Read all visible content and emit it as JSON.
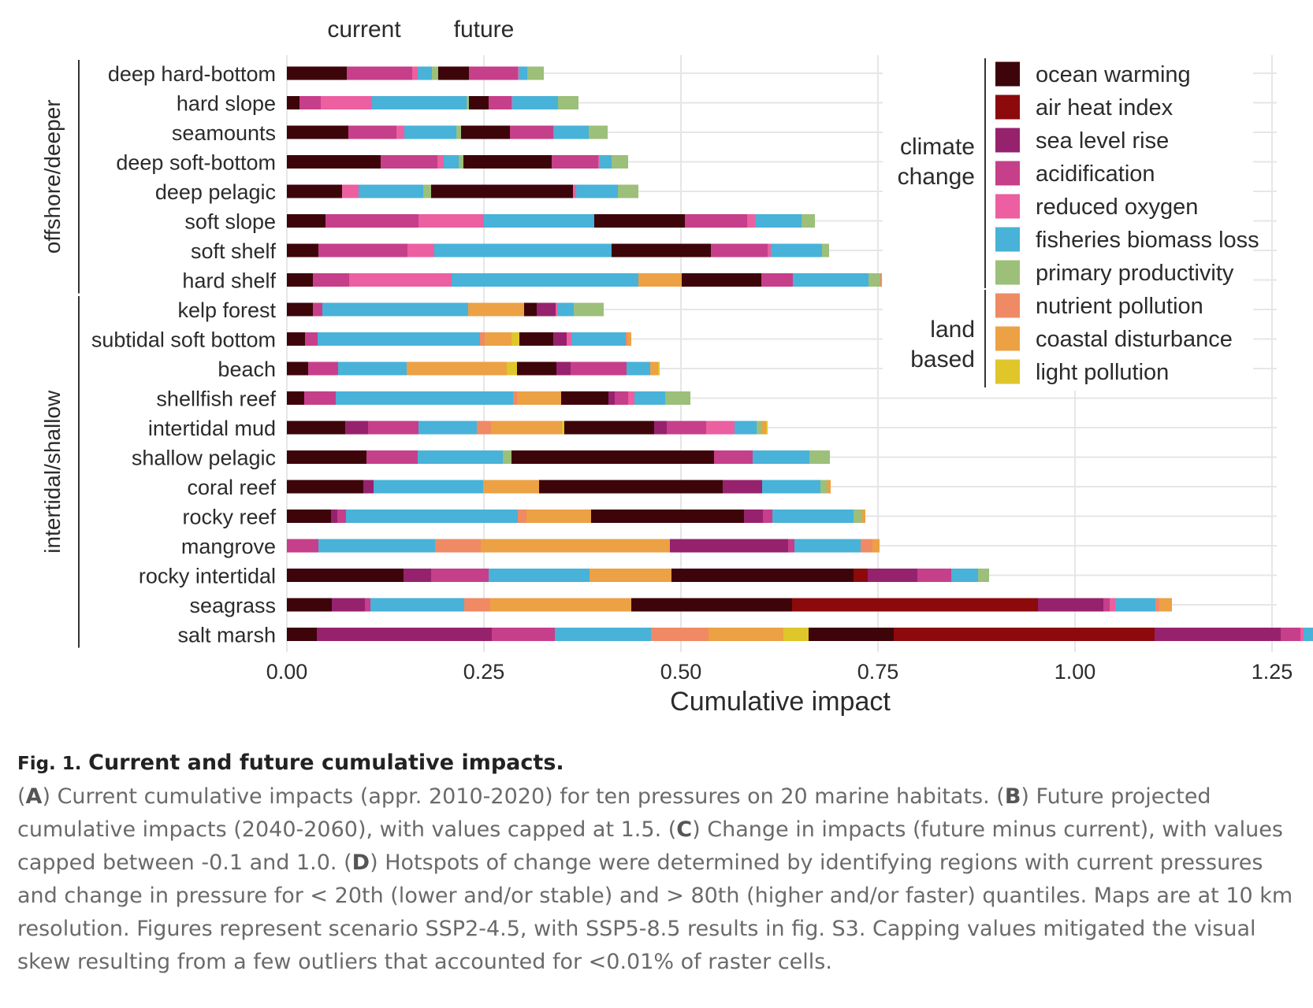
{
  "chart_data": {
    "type": "bar",
    "orientation": "horizontal",
    "stacked": true,
    "title": "",
    "column_labels": [
      "current",
      "future"
    ],
    "xlabel": "Cumulative impact",
    "ylabel": "",
    "xlim": [
      0,
      1.32
    ],
    "xticks": [
      0.0,
      0.25,
      0.5,
      0.75,
      1.0,
      1.25
    ],
    "xtick_labels": [
      "0.00",
      "0.25",
      "0.50",
      "0.75",
      "1.00",
      "1.25"
    ],
    "groups": [
      {
        "label": "offshore/deeper",
        "categories": [
          "deep hard-bottom",
          "hard slope",
          "seamounts",
          "deep soft-bottom",
          "deep pelagic",
          "soft slope",
          "soft shelf",
          "hard shelf"
        ]
      },
      {
        "label": "intertidal/shallow",
        "categories": [
          "kelp forest",
          "subtidal soft bottom",
          "beach",
          "shellfish reef",
          "intertidal mud",
          "shallow pelagic",
          "coral reef",
          "rocky reef",
          "mangrove",
          "rocky intertidal",
          "seagrass",
          "salt marsh"
        ]
      }
    ],
    "pressures": [
      {
        "name": "ocean warming",
        "color": "#3d0509",
        "group": "climate change"
      },
      {
        "name": "air heat index",
        "color": "#8c0a0b",
        "group": "climate change"
      },
      {
        "name": "sea level rise",
        "color": "#96226e",
        "group": "climate change"
      },
      {
        "name": "acidification",
        "color": "#c63f8a",
        "group": "climate change"
      },
      {
        "name": "reduced oxygen",
        "color": "#ec5fa0",
        "group": "climate change"
      },
      {
        "name": "fisheries biomass loss",
        "color": "#48b2d8",
        "group": "climate change"
      },
      {
        "name": "primary productivity",
        "color": "#9cbf7a",
        "group": "climate change"
      },
      {
        "name": "nutrient pollution",
        "color": "#ef8a64",
        "group": "land based"
      },
      {
        "name": "coastal disturbance",
        "color": "#eca144",
        "group": "land based"
      },
      {
        "name": "light pollution",
        "color": "#dfc62a",
        "group": "land based"
      }
    ],
    "legend_groups": [
      {
        "label_lines": [
          "climate",
          "change"
        ]
      },
      {
        "label_lines": [
          "land",
          "based"
        ]
      }
    ],
    "series_note": "Each habitat row shows two stacked bars: current, then future immediately to its right. Segment order follows the pressures list.",
    "rows": [
      {
        "habitat": "deep hard-bottom",
        "current": [
          0.076,
          0,
          0,
          0.083,
          0.007,
          0.018,
          0.008,
          0,
          0,
          0
        ],
        "future": [
          0.039,
          0,
          0,
          0.062,
          0.001,
          0.011,
          0.021,
          0,
          0,
          0
        ]
      },
      {
        "habitat": "hard slope",
        "current": [
          0.016,
          0,
          0,
          0.027,
          0.065,
          0.12,
          0.003,
          0,
          0,
          0
        ],
        "future": [
          0.025,
          0,
          0,
          0.029,
          0.001,
          0.058,
          0.026,
          0,
          0,
          0
        ]
      },
      {
        "habitat": "seamounts",
        "current": [
          0.078,
          0,
          0,
          0.061,
          0.01,
          0.066,
          0.006,
          0,
          0,
          0
        ],
        "future": [
          0.062,
          0,
          0,
          0.055,
          0.001,
          0.044,
          0.024,
          0,
          0,
          0
        ]
      },
      {
        "habitat": "deep soft-bottom",
        "current": [
          0.119,
          0,
          0,
          0.072,
          0.008,
          0.019,
          0.006,
          0,
          0,
          0
        ],
        "future": [
          0.112,
          0,
          0,
          0.059,
          0.001,
          0.016,
          0.021,
          0,
          0,
          0
        ]
      },
      {
        "habitat": "deep pelagic",
        "current": [
          0.07,
          0,
          0,
          0,
          0.021,
          0.082,
          0.01,
          0,
          0,
          0
        ],
        "future": [
          0.18,
          0,
          0,
          0,
          0.004,
          0.053,
          0.026,
          0,
          0,
          0
        ]
      },
      {
        "habitat": "soft slope",
        "current": [
          0.049,
          0,
          0,
          0.118,
          0.083,
          0.14,
          0,
          0,
          0,
          0
        ],
        "future": [
          0.115,
          0,
          0,
          0.079,
          0.01,
          0.059,
          0.017,
          0,
          0,
          0
        ]
      },
      {
        "habitat": "soft shelf",
        "current": [
          0.04,
          0,
          0,
          0.113,
          0.034,
          0.225,
          0,
          0,
          0,
          0
        ],
        "future": [
          0.126,
          0,
          0,
          0.072,
          0.004,
          0.065,
          0.009,
          0,
          0,
          0
        ]
      },
      {
        "habitat": "hard shelf",
        "current": [
          0.033,
          0,
          0,
          0.046,
          0.13,
          0.237,
          0,
          0,
          0.055,
          0
        ],
        "future": [
          0.101,
          0,
          0,
          0.04,
          0,
          0.096,
          0.015,
          0.002,
          0,
          0
        ]
      },
      {
        "habitat": "kelp forest",
        "current": [
          0.033,
          0,
          0,
          0.012,
          0,
          0.185,
          0,
          0,
          0.071,
          0
        ],
        "future": [
          0.016,
          0,
          0.024,
          0,
          0.002,
          0.021,
          0.038,
          0,
          0,
          0
        ]
      },
      {
        "habitat": "subtidal soft bottom",
        "current": [
          0.023,
          0,
          0,
          0.016,
          0,
          0.206,
          0,
          0.006,
          0.034,
          0.01
        ],
        "future": [
          0.043,
          0,
          0.017,
          0,
          0.006,
          0.069,
          0,
          0.002,
          0.005,
          0
        ]
      },
      {
        "habitat": "beach",
        "current": [
          0.027,
          0,
          0,
          0.038,
          0,
          0.087,
          0,
          0,
          0.127,
          0.013
        ],
        "future": [
          0.05,
          0,
          0.018,
          0.071,
          0,
          0.03,
          0,
          0,
          0.01,
          0.002
        ]
      },
      {
        "habitat": "shellfish reef",
        "current": [
          0.022,
          0,
          0,
          0.04,
          0,
          0.225,
          0,
          0.005,
          0.056,
          0
        ],
        "future": [
          0.06,
          0,
          0.008,
          0.017,
          0.008,
          0.039,
          0.032,
          0,
          0,
          0
        ]
      },
      {
        "habitat": "intertidal mud",
        "current": [
          0.074,
          0,
          0.029,
          0.064,
          0,
          0.074,
          0,
          0.018,
          0.09,
          0.003
        ],
        "future": [
          0.114,
          0,
          0.016,
          0.05,
          0.036,
          0.028,
          0.007,
          0,
          0.005,
          0.002
        ]
      },
      {
        "habitat": "shallow pelagic",
        "current": [
          0.101,
          0,
          0,
          0.065,
          0,
          0.108,
          0.011,
          0,
          0,
          0
        ],
        "future": [
          0.257,
          0,
          0,
          0.049,
          0,
          0.072,
          0.026,
          0,
          0,
          0
        ]
      },
      {
        "habitat": "coral reef",
        "current": [
          0.097,
          0,
          0.013,
          0,
          0,
          0.139,
          0,
          0,
          0.071,
          0
        ],
        "future": [
          0.233,
          0,
          0.05,
          0,
          0,
          0.074,
          0.008,
          0,
          0.005,
          0
        ]
      },
      {
        "habitat": "rocky reef",
        "current": [
          0.056,
          0,
          0.008,
          0.011,
          0,
          0.218,
          0,
          0.011,
          0.082,
          0
        ],
        "future": [
          0.194,
          0,
          0.024,
          0.012,
          0,
          0.103,
          0.011,
          0,
          0.004,
          0
        ]
      },
      {
        "habitat": "mangrove",
        "current": [
          0,
          0,
          0,
          0.04,
          0,
          0.148,
          0,
          0.058,
          0.24,
          0
        ],
        "future": [
          0,
          0,
          0.15,
          0.008,
          0,
          0.084,
          0,
          0.015,
          0.009,
          0
        ]
      },
      {
        "habitat": "rocky intertidal",
        "current": [
          0.148,
          0,
          0.035,
          0.073,
          0,
          0.128,
          0,
          0,
          0.104,
          0
        ],
        "future": [
          0.231,
          0.018,
          0.063,
          0.043,
          0,
          0.034,
          0.014,
          0,
          0,
          0
        ]
      },
      {
        "habitat": "seagrass",
        "current": [
          0.057,
          0,
          0.042,
          0.007,
          0,
          0.119,
          0,
          0.033,
          0.179,
          0
        ],
        "future": [
          0.204,
          0.312,
          0.083,
          0.008,
          0.007,
          0.051,
          0,
          0.005,
          0.016,
          0
        ]
      },
      {
        "habitat": "salt marsh",
        "current": [
          0.038,
          0,
          0.222,
          0.08,
          0,
          0.122,
          0,
          0.073,
          0.095,
          0.032
        ],
        "future": [
          0.108,
          0.331,
          0.16,
          0.025,
          0.004,
          0.018,
          0,
          0,
          0,
          0.008
        ]
      }
    ]
  },
  "caption": {
    "fig_no": "Fig. 1.",
    "title": "Current and future cumulative impacts.",
    "parts": [
      {
        "letter": "A",
        "text": "Current cumulative impacts (appr. 2010-2020) for ten pressures on 20 marine habitats."
      },
      {
        "letter": "B",
        "text": "Future projected cumulative impacts (2040-2060), with values capped at 1.5."
      },
      {
        "letter": "C",
        "text": "Change in impacts (future minus current), with values capped between -0.1 and 1.0."
      },
      {
        "letter": "D",
        "text": "Hotspots of change were determined by identifying regions with current pressures and change in pressure for < 20th (lower and/or stable) and > 80th (higher and/or faster) quantiles. Maps are at 10 km resolution. Figures represent scenario SSP2-4.5, with SSP5-8.5 results in fig. S3. Capping values mitigated the visual skew resulting from a few outliers that accounted for <0.01% of raster cells."
      }
    ]
  }
}
